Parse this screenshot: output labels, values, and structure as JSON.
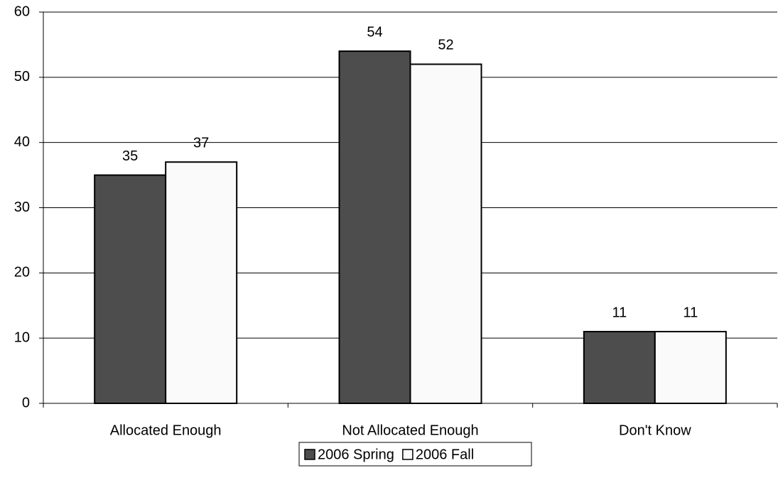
{
  "chart_data": {
    "type": "bar",
    "categories": [
      "Allocated Enough",
      "Not Allocated Enough",
      "Don't Know"
    ],
    "series": [
      {
        "name": "2006 Spring",
        "color": "#4d4d4d",
        "values": [
          35,
          54,
          11
        ]
      },
      {
        "name": "2006 Fall",
        "color": "#fafafa",
        "values": [
          37,
          52,
          11
        ]
      }
    ],
    "ylim": [
      0,
      60
    ],
    "yticks": [
      0,
      10,
      20,
      30,
      40,
      50,
      60
    ],
    "grid": true,
    "legend": "bottom"
  }
}
